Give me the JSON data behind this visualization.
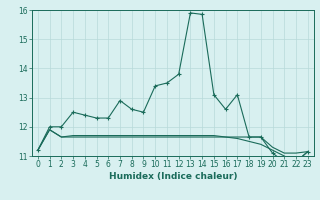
{
  "xlabel": "Humidex (Indice chaleur)",
  "x": [
    0,
    1,
    2,
    3,
    4,
    5,
    6,
    7,
    8,
    9,
    10,
    11,
    12,
    13,
    14,
    15,
    16,
    17,
    18,
    19,
    20,
    21,
    22,
    23
  ],
  "line1": [
    11.2,
    12.0,
    12.0,
    12.5,
    12.4,
    12.3,
    12.3,
    12.9,
    12.6,
    12.5,
    13.4,
    13.5,
    13.8,
    15.9,
    15.85,
    13.1,
    12.6,
    13.1,
    11.65,
    11.65,
    11.1,
    10.8,
    10.8,
    11.15
  ],
  "line2": [
    11.2,
    11.9,
    11.65,
    11.65,
    11.65,
    11.65,
    11.65,
    11.65,
    11.65,
    11.65,
    11.65,
    11.65,
    11.65,
    11.65,
    11.65,
    11.65,
    11.65,
    11.65,
    11.65,
    11.65,
    11.3,
    11.1,
    11.1,
    11.15
  ],
  "line3": [
    11.2,
    11.9,
    11.65,
    11.7,
    11.7,
    11.7,
    11.7,
    11.7,
    11.7,
    11.7,
    11.7,
    11.7,
    11.7,
    11.7,
    11.7,
    11.7,
    11.65,
    11.6,
    11.5,
    11.4,
    11.2,
    11.0,
    10.8,
    11.15
  ],
  "ylim": [
    11.0,
    16.0
  ],
  "yticks": [
    11,
    12,
    13,
    14,
    15,
    16
  ],
  "color": "#1a6b5a",
  "bg_color": "#d8f0f0",
  "grid_color": "#b8dada",
  "label_fontsize": 6.5,
  "tick_fontsize": 5.5
}
